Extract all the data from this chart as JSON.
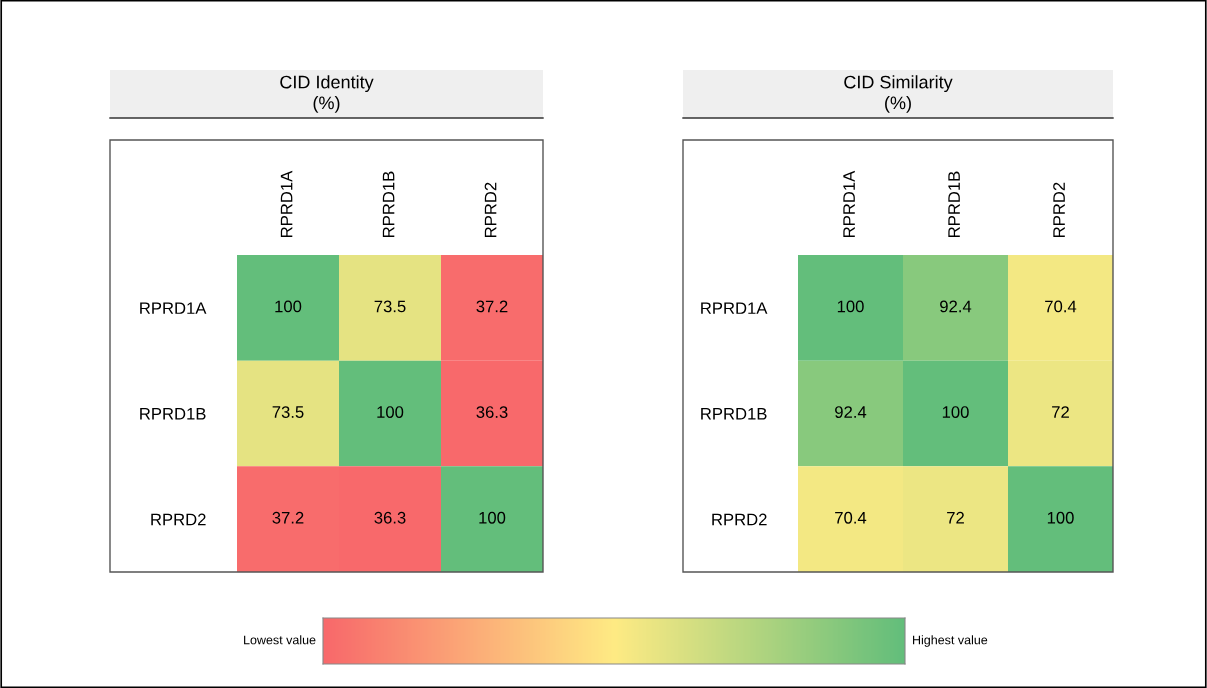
{
  "chart_data": [
    {
      "type": "heatmap",
      "title": "CID Identity\n(%)",
      "categories": [
        "RPRD1A",
        "RPRD1B",
        "RPRD2"
      ],
      "y_categories": [
        "RPRD1A",
        "RPRD1B",
        "RPRD2"
      ],
      "cells": [
        [
          100,
          73.5,
          37.2
        ],
        [
          73.5,
          100,
          36.3
        ],
        [
          37.2,
          36.3,
          100
        ]
      ],
      "colors": [
        "#f8696b",
        "#ffeb84",
        "#63be7b"
      ],
      "data_labels": true
    },
    {
      "type": "heatmap",
      "title": "CID Similarity\n(%)",
      "categories": [
        "RPRD1A",
        "RPRD1B",
        "RPRD2"
      ],
      "y_categories": [
        "RPRD1A",
        "RPRD1B",
        "RPRD2"
      ],
      "cells": [
        [
          100,
          92.4,
          70.4
        ],
        [
          92.4,
          100,
          72
        ],
        [
          70.4,
          72,
          100
        ]
      ],
      "colors": [
        "#f8696b",
        "#ffeb84",
        "#63be7b"
      ],
      "data_labels": true
    },
    {
      "type": "other",
      "annotations": [
        "Lowest value",
        "Highest value"
      ],
      "colors": [
        "#f8696b",
        "#ffeb84",
        "#63be7b"
      ]
    }
  ]
}
